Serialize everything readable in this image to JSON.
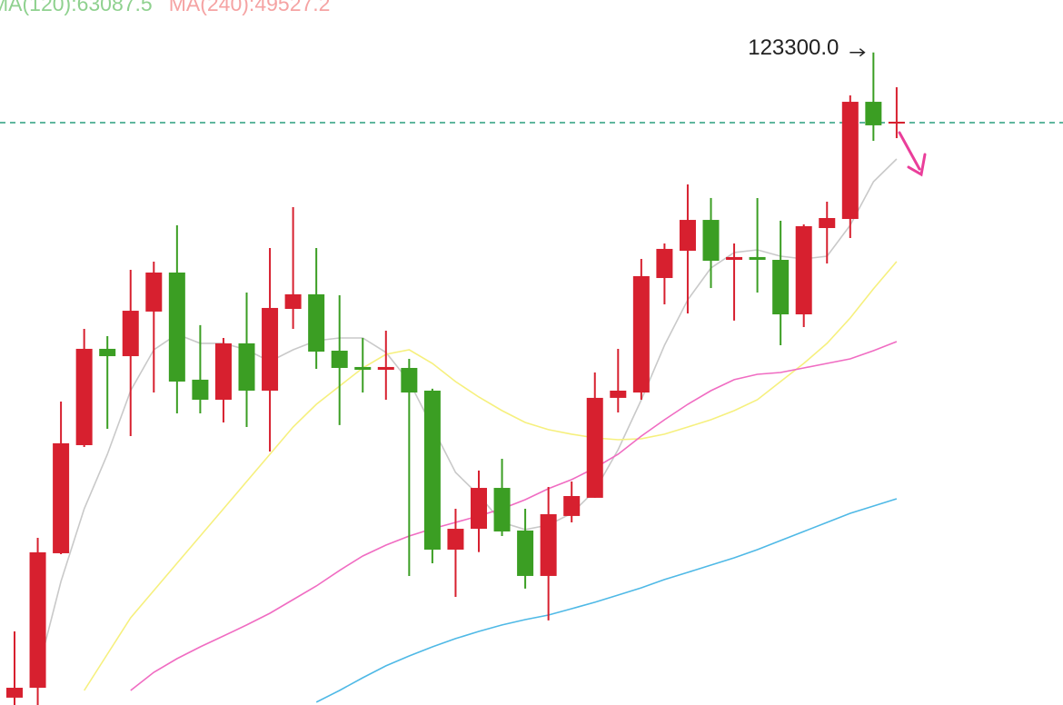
{
  "chart_data": {
    "type": "candlestick",
    "legend": [
      {
        "text": "MA(120):63087.5",
        "color": "#8fd18f"
      },
      {
        "text": "MA(240):49527.2",
        "color": "#f5a3a3"
      }
    ],
    "ylim": [
      67270,
      127800
    ],
    "up_color": "#d7202f",
    "down_color": "#3b9e23",
    "open": [
      67900,
      68750,
      80300,
      89580,
      97850,
      97220,
      101050,
      104400,
      95200,
      93480,
      98320,
      94260,
      101280,
      102530,
      97690,
      96290,
      96050,
      96210,
      94260,
      80610,
      82400,
      85910,
      82250,
      78350,
      83500,
      85060,
      93640,
      94100,
      103930,
      106270,
      108920,
      105490,
      105730,
      105490,
      100810,
      108220,
      109000,
      119060,
      117190
    ],
    "high": [
      73590,
      81620,
      93320,
      99560,
      98940,
      104630,
      105340,
      108460,
      99880,
      98780,
      102680,
      106510,
      110020,
      106510,
      102450,
      98780,
      99410,
      96990,
      94420,
      84120,
      87400,
      88410,
      84120,
      85990,
      86460,
      95820,
      97850,
      105570,
      106900,
      111970,
      110800,
      106900,
      110800,
      108850,
      108530,
      110480,
      119610,
      123300,
      120310
    ],
    "low": [
      67270,
      67270,
      80220,
      89420,
      90980,
      90360,
      94100,
      92310,
      92310,
      91530,
      91140,
      89030,
      99560,
      96130,
      91300,
      94100,
      93480,
      78350,
      79440,
      76550,
      80400,
      81780,
      77260,
      74530,
      82950,
      85060,
      92390,
      93480,
      101670,
      100890,
      103070,
      100270,
      102680,
      98160,
      99720,
      105180,
      107360,
      115710,
      115940
    ],
    "close": [
      68750,
      80380,
      89740,
      97850,
      97220,
      101120,
      104400,
      95040,
      93480,
      98320,
      94260,
      101360,
      102530,
      97610,
      96210,
      96050,
      96290,
      94100,
      80610,
      82400,
      85910,
      82170,
      78350,
      83650,
      85210,
      93640,
      94260,
      104090,
      106430,
      108920,
      105410,
      105730,
      105490,
      100810,
      108380,
      109080,
      119060,
      117040,
      117350
    ],
    "series": [
      {
        "color": "#c9c9c9",
        "values": [
          null,
          70080,
          77880,
          84120,
          88800,
          94260,
          97770,
          99100,
          98320,
          98320,
          97770,
          96760,
          97770,
          98550,
          98780,
          98780,
          97540,
          95040,
          91140,
          87240,
          85290,
          82950,
          82330,
          82720,
          83730,
          85680,
          89190,
          93480,
          98160,
          102060,
          104790,
          106120,
          106350,
          105800,
          105570,
          105800,
          108460,
          112200,
          114150
        ]
      },
      {
        "color": "#f6f07e",
        "values": [
          null,
          null,
          null,
          68520,
          71640,
          74760,
          77100,
          79440,
          81780,
          84120,
          86460,
          88800,
          91140,
          93090,
          94650,
          96210,
          97380,
          97770,
          96600,
          95040,
          93710,
          92540,
          91530,
          90910,
          90520,
          90200,
          90050,
          90130,
          90520,
          91140,
          91760,
          92540,
          93480,
          95040,
          96600,
          98320,
          100500,
          103000,
          105340
        ]
      },
      {
        "color": "#f06cc2",
        "values": [
          null,
          null,
          null,
          null,
          null,
          68520,
          70080,
          71250,
          72260,
          73200,
          74140,
          75150,
          76320,
          77490,
          78820,
          80060,
          81000,
          81780,
          82400,
          82950,
          83500,
          84120,
          84900,
          85840,
          86620,
          87630,
          88800,
          90360,
          91760,
          93090,
          94260,
          95200,
          95660,
          95820,
          96210,
          96600,
          96990,
          97690,
          98470
        ]
      },
      {
        "color": "#4fb9e6",
        "values": [
          null,
          null,
          null,
          null,
          null,
          null,
          null,
          null,
          null,
          null,
          null,
          null,
          null,
          67510,
          68520,
          69610,
          70630,
          71480,
          72260,
          72970,
          73590,
          74140,
          74600,
          74990,
          75540,
          76090,
          76710,
          77330,
          78040,
          78660,
          79280,
          79910,
          80610,
          81390,
          82170,
          82950,
          83730,
          84350,
          84980
        ]
      }
    ],
    "price_line": {
      "value": 117270,
      "color": "#2a9d7f"
    },
    "annotations": [
      {
        "text": "123300.0",
        "value": 123300
      }
    ]
  }
}
